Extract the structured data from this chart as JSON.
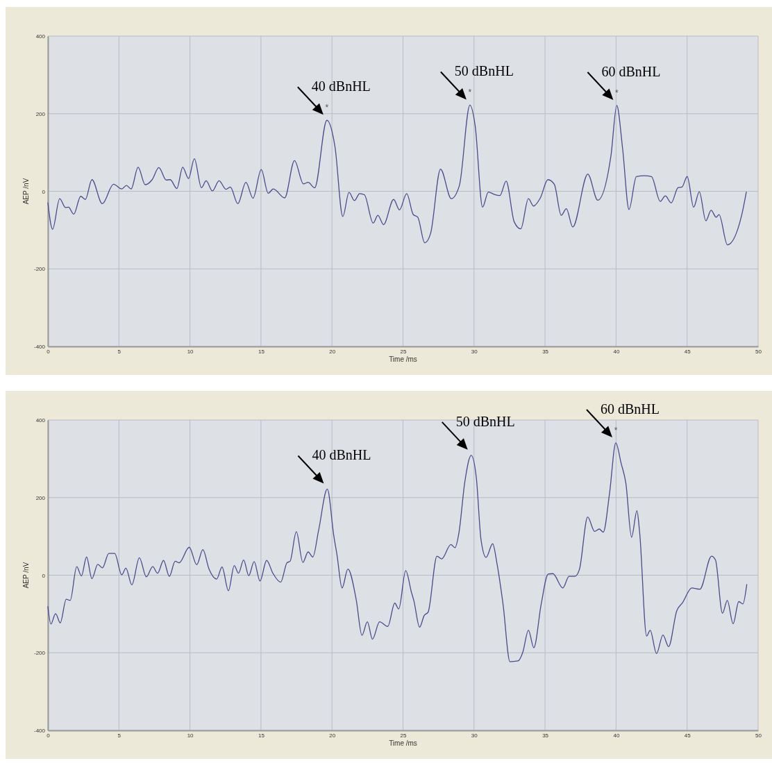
{
  "chart_data": [
    {
      "type": "line",
      "xlabel": "Time /ms",
      "ylabel": "AEP /nV",
      "xlim": [
        0,
        50
      ],
      "ylim": [
        -400,
        400
      ],
      "xticks": [
        0,
        5,
        10,
        15,
        20,
        25,
        30,
        35,
        40,
        45,
        50
      ],
      "yticks": [
        -400,
        -200,
        0,
        200,
        400
      ],
      "grid": true,
      "color": "#4a4a8c",
      "x": [
        0,
        0.33,
        0.83,
        1.24,
        1.45,
        1.82,
        2.31,
        2.64,
        3.1,
        3.83,
        4.62,
        5.2,
        5.53,
        5.86,
        6.35,
        6.85,
        7.34,
        7.81,
        8.33,
        8.61,
        9.08,
        9.49,
        9.9,
        10.31,
        10.81,
        11.14,
        11.58,
        12.05,
        12.54,
        12.84,
        13.37,
        13.94,
        14.44,
        15.02,
        15.51,
        15.87,
        16.67,
        17.36,
        17.99,
        18.32,
        18.78,
        19.64,
        20.21,
        20.76,
        21.2,
        21.58,
        21.95,
        22.28,
        22.9,
        23.23,
        23.63,
        24.34,
        24.75,
        25.26,
        25.72,
        26.04,
        26.53,
        26.94,
        27.64,
        28.4,
        28.97,
        29.71,
        30.08,
        30.6,
        31.01,
        31.42,
        31.82,
        32.26,
        32.83,
        33.29,
        33.83,
        34.19,
        34.67,
        35.2,
        35.65,
        36.14,
        36.5,
        36.95,
        38.01,
        38.71,
        39.64,
        40.05,
        40.46,
        40.91,
        41.43,
        42.0,
        42.49,
        43.11,
        43.47,
        43.88,
        44.36,
        44.64,
        45.01,
        45.46,
        45.86,
        46.32,
        46.69,
        47.05,
        47.25,
        47.84,
        48.84,
        49.17
      ],
      "values": [
        -30,
        -98,
        -19,
        -42,
        -41,
        -59,
        -13,
        -21,
        30,
        -32,
        18,
        6,
        15,
        6,
        62,
        17,
        30,
        61,
        29,
        30,
        7,
        62,
        33,
        84,
        9,
        27,
        1,
        27,
        5,
        11,
        -32,
        23,
        -18,
        56,
        -5,
        6,
        -17,
        79,
        19,
        23,
        9,
        183,
        115,
        -65,
        -3,
        -24,
        -6,
        -9,
        -82,
        -62,
        -86,
        -21,
        -48,
        -6,
        -60,
        -67,
        -133,
        -109,
        57,
        -19,
        15,
        222,
        169,
        -41,
        -2,
        -8,
        -11,
        26,
        -79,
        -97,
        -19,
        -38,
        -17,
        30,
        18,
        -62,
        -45,
        -92,
        44,
        -23,
        92,
        221,
        110,
        -47,
        38,
        40,
        38,
        -26,
        -12,
        -30,
        9,
        11,
        38,
        -41,
        -1,
        -76,
        -49,
        -67,
        -60,
        -138,
        -62,
        -2
      ],
      "annotations": [
        {
          "text": "40 dBnHL",
          "x": 19.64,
          "y": 183
        },
        {
          "text": "50 dBnHL",
          "x": 29.71,
          "y": 222
        },
        {
          "text": "60 dBnHL",
          "x": 40.05,
          "y": 221
        },
        {
          "text": "*",
          "x": 19.64,
          "y": 183
        },
        {
          "text": "*",
          "x": 29.71,
          "y": 222
        },
        {
          "text": "*",
          "x": 40.05,
          "y": 221
        }
      ]
    },
    {
      "type": "line",
      "xlabel": "Time /ms",
      "ylabel": "AEP /nV",
      "xlim": [
        0,
        50
      ],
      "ylim": [
        -400,
        400
      ],
      "xticks": [
        0,
        5,
        10,
        15,
        20,
        25,
        30,
        35,
        40,
        45,
        50
      ],
      "yticks": [
        -400,
        -200,
        0,
        200,
        400
      ],
      "grid": true,
      "color": "#4a4a8c",
      "x": [
        0,
        0.21,
        0.54,
        0.87,
        1.29,
        1.57,
        2.03,
        2.36,
        2.72,
        3.1,
        3.51,
        3.84,
        4.29,
        4.7,
        5.2,
        5.49,
        5.91,
        6.44,
        6.93,
        7.38,
        7.72,
        8.14,
        8.55,
        8.96,
        9.24,
        9.95,
        10.48,
        10.91,
        11.34,
        11.88,
        12.26,
        12.71,
        13.12,
        13.42,
        13.78,
        14.14,
        14.52,
        14.93,
        15.4,
        15.84,
        16.39,
        16.83,
        17.05,
        17.49,
        17.95,
        18.32,
        18.65,
        19.06,
        19.67,
        20.13,
        20.35,
        20.71,
        21.12,
        21.7,
        22.11,
        22.49,
        22.85,
        23.35,
        23.93,
        24.42,
        24.7,
        25.19,
        25.6,
        25.76,
        26.17,
        26.49,
        26.77,
        27.39,
        27.72,
        28.37,
        28.66,
        28.94,
        29.35,
        29.8,
        30.16,
        30.49,
        30.85,
        31.31,
        31.63,
        32.04,
        32.53,
        33.1,
        33.43,
        33.83,
        34.21,
        34.73,
        35.22,
        35.55,
        36.25,
        36.69,
        37.1,
        37.42,
        38.0,
        38.49,
        38.81,
        39.1,
        39.54,
        39.98,
        40.36,
        40.69,
        41.09,
        41.47,
        41.66,
        42.15,
        42.4,
        42.85,
        43.3,
        43.7,
        44.27,
        44.68,
        45.33,
        45.9,
        46.72,
        47.0,
        47.49,
        47.83,
        48.24,
        48.64,
        48.93,
        49.2
      ],
      "values": [
        -81,
        -126,
        -99,
        -123,
        -62,
        -65,
        22,
        -2,
        47,
        -9,
        28,
        19,
        56,
        56,
        1,
        18,
        -25,
        45,
        -4,
        22,
        5,
        38,
        -3,
        36,
        32,
        72,
        27,
        66,
        16,
        -10,
        21,
        -40,
        25,
        5,
        39,
        -1,
        35,
        -15,
        38,
        5,
        -18,
        32,
        36,
        112,
        33,
        60,
        47,
        116,
        222,
        101,
        53,
        -33,
        16,
        -62,
        -155,
        -120,
        -165,
        -120,
        -132,
        -72,
        -87,
        12,
        -45,
        -65,
        -134,
        -104,
        -95,
        49,
        42,
        79,
        71,
        110,
        240,
        309,
        252,
        92,
        46,
        81,
        27,
        -74,
        -223,
        -221,
        -199,
        -142,
        -187,
        -74,
        3,
        4,
        -33,
        -3,
        -3,
        15,
        150,
        113,
        119,
        111,
        211,
        341,
        288,
        237,
        98,
        166,
        110,
        -157,
        -142,
        -202,
        -154,
        -184,
        -92,
        -71,
        -33,
        -36,
        49,
        39,
        -98,
        -65,
        -125,
        -68,
        -74,
        -24
      ],
      "annotations": [
        {
          "text": "40 dBnHL",
          "x": 19.67,
          "y": 222
        },
        {
          "text": "50 dBnHL",
          "x": 29.8,
          "y": 309
        },
        {
          "text": "60 dBnHL",
          "x": 39.98,
          "y": 341
        },
        {
          "text": "*",
          "x": 39.98,
          "y": 341
        }
      ]
    }
  ]
}
